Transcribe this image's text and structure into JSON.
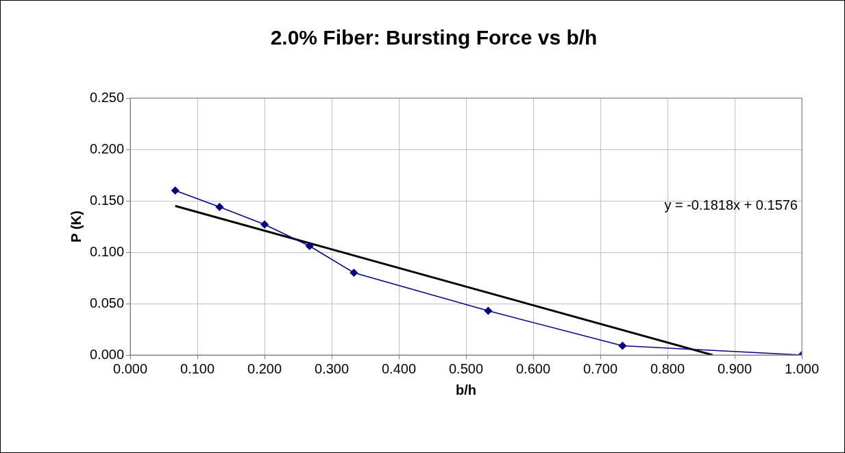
{
  "chart_data": {
    "type": "line",
    "title": "2.0% Fiber: Bursting Force vs b/h",
    "xlabel": "b/h",
    "ylabel": "P (K)",
    "xlim": [
      0,
      1
    ],
    "xticks": [
      {
        "value": 0,
        "label": "0.000"
      },
      {
        "value": 0.1,
        "label": "0.100"
      },
      {
        "value": 0.2,
        "label": "0.200"
      },
      {
        "value": 0.3,
        "label": "0.300"
      },
      {
        "value": 0.4,
        "label": "0.400"
      },
      {
        "value": 0.5,
        "label": "0.500"
      },
      {
        "value": 0.6,
        "label": "0.600"
      },
      {
        "value": 0.7,
        "label": "0.700"
      },
      {
        "value": 0.8,
        "label": "0.800"
      },
      {
        "value": 0.9,
        "label": "0.900"
      },
      {
        "value": 1,
        "label": "1.000"
      }
    ],
    "ylim": [
      0,
      0.25
    ],
    "yticks": [
      {
        "value": 0,
        "label": "0.000"
      },
      {
        "value": 0.05,
        "label": "0.050"
      },
      {
        "value": 0.1,
        "label": "0.100"
      },
      {
        "value": 0.15,
        "label": "0.150"
      },
      {
        "value": 0.2,
        "label": "0.200"
      },
      {
        "value": 0.25,
        "label": "0.250"
      }
    ],
    "grid": true,
    "legend": false,
    "marker": "diamond",
    "series": [
      {
        "color": "#000080",
        "x": [
          0.067,
          0.133,
          0.2,
          0.267,
          0.333,
          0.533,
          0.733,
          1.0
        ],
        "values": [
          0.16,
          0.144,
          0.127,
          0.106,
          0.08,
          0.043,
          0.009,
          0.0
        ]
      },
      {
        "color": "#000000",
        "marker": "none",
        "x": [
          0.067,
          0.867
        ],
        "values": [
          0.145,
          0.0
        ]
      }
    ],
    "annotations": [
      "y = -0.1818x + 0.1576"
    ]
  }
}
